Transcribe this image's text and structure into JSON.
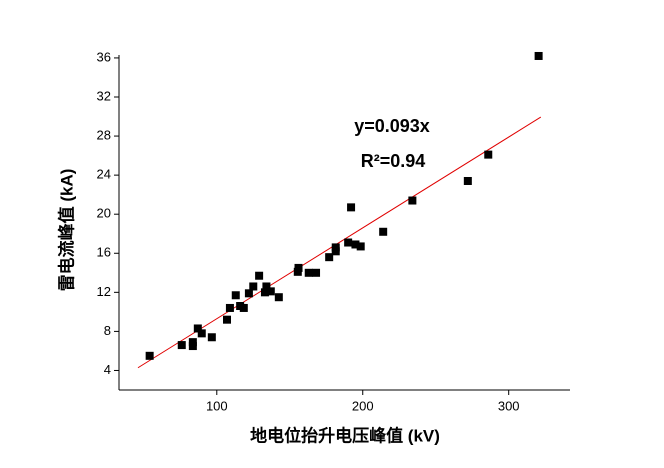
{
  "chart_data": {
    "type": "scatter",
    "x_label": "地电位抬升电压峰值 (kV)",
    "y_label": "雷电流峰值 (kA)",
    "x": [
      54,
      76,
      83.6,
      83.6,
      87,
      89.7,
      96.6,
      107,
      109,
      113,
      116,
      118.5,
      122,
      125,
      129,
      133,
      134,
      137,
      142.5,
      155.5,
      156,
      163,
      168,
      177,
      181.5,
      181.5,
      190,
      192,
      195,
      198.6,
      214,
      234,
      272,
      286,
      320.5
    ],
    "values": [
      5.5,
      6.6,
      6.5,
      6.9,
      8.3,
      7.8,
      7.4,
      9.2,
      10.4,
      11.7,
      10.6,
      10.4,
      11.9,
      12.6,
      13.7,
      12.0,
      12.6,
      12.1,
      11.5,
      14.1,
      14.5,
      14.0,
      14.0,
      15.6,
      16.2,
      16.6,
      17.1,
      20.7,
      16.9,
      16.7,
      18.2,
      21.4,
      23.4,
      26.1,
      36.2
    ],
    "color": "#000000",
    "xlim": [
      33,
      342
    ],
    "xticks": [
      100,
      200,
      300
    ],
    "ylim": [
      2,
      36.3
    ],
    "yticks": [
      4,
      8,
      12,
      16,
      20,
      24,
      28,
      32,
      36
    ],
    "fit": {
      "label": "y=0.093x",
      "slope": 0.093,
      "x_range": [
        46,
        322
      ],
      "color": "#e00000"
    },
    "r2_label": "R²=0.94"
  }
}
